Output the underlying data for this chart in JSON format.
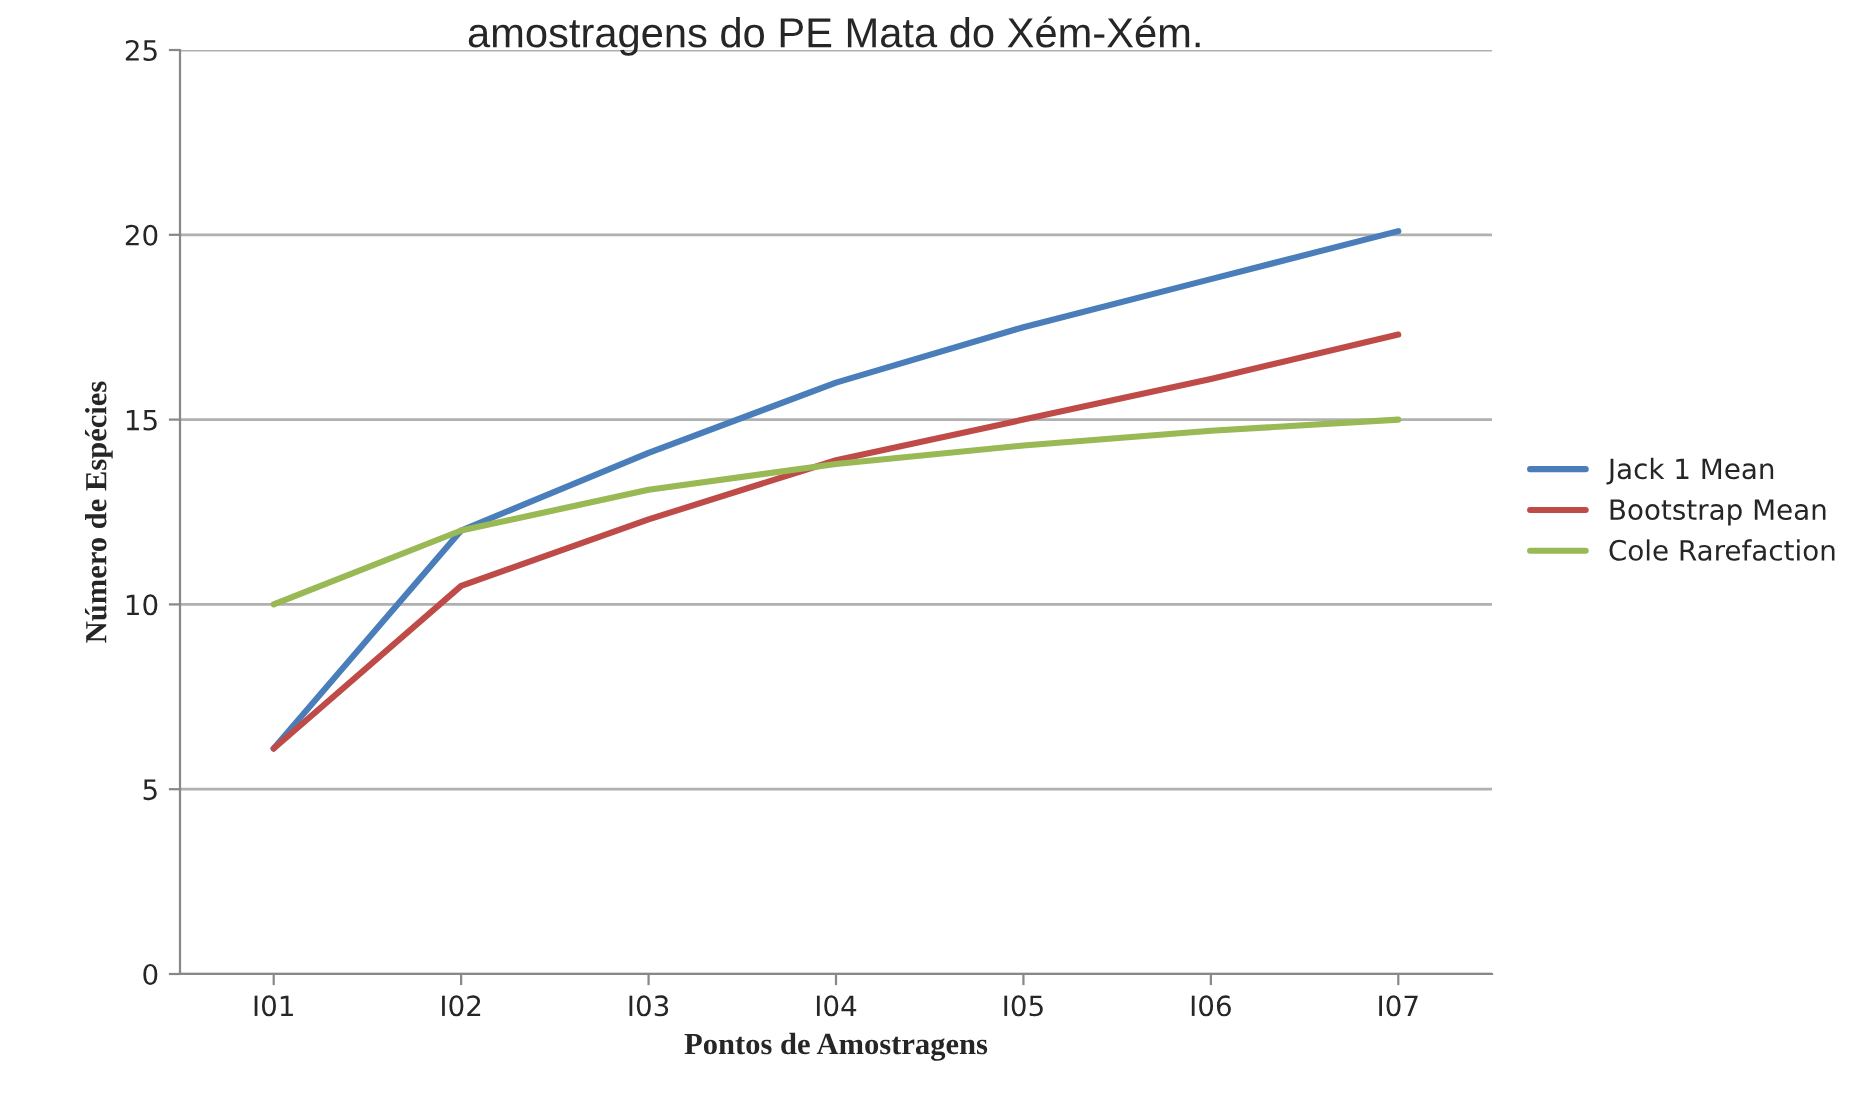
{
  "chart_data": {
    "type": "line",
    "title": "amostragens do PE Mata do Xém-Xém.",
    "xlabel": "Pontos de Amostragens",
    "ylabel": "Número de Espécies",
    "categories": [
      "I01",
      "I02",
      "I03",
      "I04",
      "I05",
      "I06",
      "I07"
    ],
    "series": [
      {
        "name": "Jack 1 Mean",
        "color": "#4a7ebb",
        "values": [
          6.1,
          12.0,
          14.1,
          16.0,
          17.5,
          18.8,
          20.1
        ]
      },
      {
        "name": "Bootstrap Mean",
        "color": "#be4b48",
        "values": [
          6.1,
          10.5,
          12.3,
          13.9,
          15.0,
          16.1,
          17.3
        ]
      },
      {
        "name": "Cole Rarefaction",
        "color": "#98b954",
        "values": [
          10.0,
          12.0,
          13.1,
          13.8,
          14.3,
          14.7,
          15.0
        ]
      }
    ],
    "ylim": [
      0,
      25
    ],
    "yticks": [
      0,
      5,
      10,
      15,
      20,
      25
    ],
    "grid": "y",
    "legend": "right",
    "marker": "none",
    "line_style": "solid"
  }
}
